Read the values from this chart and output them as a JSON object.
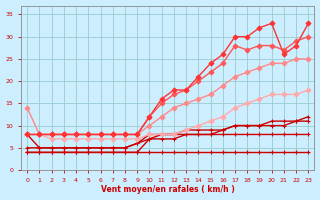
{
  "x": [
    0,
    1,
    2,
    3,
    4,
    5,
    6,
    7,
    8,
    9,
    10,
    11,
    12,
    13,
    14,
    15,
    16,
    17,
    18,
    19,
    20,
    21,
    22,
    23
  ],
  "series": [
    {
      "y": [
        4,
        4,
        4,
        4,
        4,
        4,
        4,
        4,
        4,
        4,
        4,
        4,
        4,
        4,
        4,
        4,
        4,
        4,
        4,
        4,
        4,
        4,
        4,
        4
      ],
      "color": "#cc0000",
      "lw": 1.0,
      "marker": "+",
      "ms": 3.0
    },
    {
      "y": [
        4,
        4,
        4,
        4,
        4,
        4,
        4,
        4,
        4,
        4,
        7,
        7,
        7,
        8,
        8,
        8,
        9,
        10,
        10,
        10,
        10,
        10,
        11,
        11
      ],
      "color": "#cc0000",
      "lw": 1.0,
      "marker": "+",
      "ms": 3.0
    },
    {
      "y": [
        8,
        5,
        5,
        5,
        5,
        5,
        5,
        5,
        5,
        6,
        7,
        8,
        8,
        8,
        8,
        8,
        8,
        8,
        8,
        8,
        8,
        8,
        8,
        8
      ],
      "color": "#cc0000",
      "lw": 1.0,
      "marker": "+",
      "ms": 3.0
    },
    {
      "y": [
        5,
        5,
        5,
        5,
        5,
        5,
        5,
        5,
        5,
        6,
        8,
        8,
        8,
        9,
        9,
        9,
        9,
        10,
        10,
        10,
        11,
        11,
        11,
        12
      ],
      "color": "#cc0000",
      "lw": 1.0,
      "marker": "+",
      "ms": 3.0
    },
    {
      "y": [
        8,
        8,
        7,
        7,
        7,
        7,
        7,
        7,
        7,
        7,
        8,
        8,
        8,
        9,
        10,
        11,
        12,
        14,
        15,
        16,
        17,
        17,
        17,
        18
      ],
      "color": "#ffaaaa",
      "lw": 1.0,
      "marker": "D",
      "ms": 2.5
    },
    {
      "y": [
        14,
        8,
        8,
        8,
        8,
        8,
        8,
        8,
        8,
        8,
        10,
        12,
        14,
        15,
        16,
        17,
        19,
        21,
        22,
        23,
        24,
        24,
        25,
        25
      ],
      "color": "#ff8888",
      "lw": 1.0,
      "marker": "D",
      "ms": 2.5
    },
    {
      "y": [
        8,
        8,
        8,
        8,
        8,
        8,
        8,
        8,
        8,
        8,
        12,
        15,
        17,
        18,
        20,
        22,
        24,
        28,
        27,
        28,
        28,
        27,
        29,
        30
      ],
      "color": "#ff5555",
      "lw": 1.0,
      "marker": "D",
      "ms": 2.5
    },
    {
      "y": [
        8,
        8,
        8,
        8,
        8,
        8,
        8,
        8,
        8,
        8,
        12,
        16,
        18,
        18,
        21,
        24,
        26,
        30,
        30,
        32,
        33,
        26,
        28,
        33
      ],
      "color": "#ff3333",
      "lw": 1.0,
      "marker": "D",
      "ms": 2.5
    }
  ],
  "background_color": "#cceeff",
  "grid_color": "#99cccc",
  "xlabel": "Vent moyen/en rafales ( km/h )",
  "xlim": [
    -0.5,
    23.5
  ],
  "ylim": [
    0,
    37
  ],
  "yticks": [
    0,
    5,
    10,
    15,
    20,
    25,
    30,
    35
  ],
  "xticks": [
    0,
    1,
    2,
    3,
    4,
    5,
    6,
    7,
    8,
    9,
    10,
    11,
    12,
    13,
    14,
    15,
    16,
    17,
    18,
    19,
    20,
    21,
    22,
    23
  ],
  "tick_color": "#cc0000",
  "label_color": "#cc0000"
}
